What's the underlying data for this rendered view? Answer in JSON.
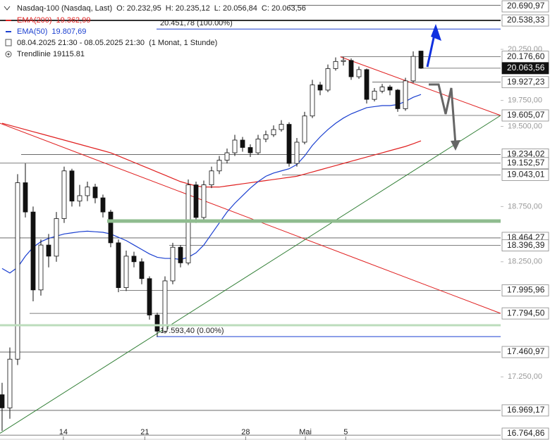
{
  "chart_data": {
    "type": "candlestick",
    "title": "Nasdaq-100 (Nasdaq, Last)",
    "ohlc_labels": [
      "O: 20.232,95",
      "H: 20.235,12",
      "L: 20.056,84",
      "C: 20.063,56"
    ],
    "period": "08.04.2025 21:30 - 08.05.2025 21:30",
    "interval": "(1 Monat, 1 Stunde)",
    "log_scale": true,
    "ylim": [
      16725,
      20745
    ],
    "xlim": [
      -0.27,
      64.27
    ],
    "yticks": [
      {
        "value": 20250,
        "label": "20.250,00"
      },
      {
        "value": 19750,
        "label": "19.750,00"
      },
      {
        "value": 19500,
        "label": "19.500,00"
      },
      {
        "value": 18750,
        "label": "18.750,00"
      },
      {
        "value": 18250,
        "label": "18.250,00"
      },
      {
        "value": 17250,
        "label": "17.250,00"
      }
    ],
    "xticks": [
      {
        "value": 7.9,
        "label": "14"
      },
      {
        "value": 18.4,
        "label": "21"
      },
      {
        "value": 31.4,
        "label": "28"
      },
      {
        "value": 39.1,
        "label": "Mai"
      },
      {
        "value": 44.3,
        "label": "5"
      }
    ],
    "candles": [
      [
        17100,
        17200,
        16800,
        16990
      ],
      [
        16990,
        17500,
        16900,
        17400
      ],
      [
        17400,
        19050,
        17350,
        18970
      ],
      [
        18970,
        19150,
        18650,
        18700
      ],
      [
        18700,
        18750,
        17900,
        18000
      ],
      [
        18000,
        18450,
        17950,
        18400
      ],
      [
        18400,
        18500,
        18200,
        18300
      ],
      [
        18300,
        18700,
        18250,
        18640
      ],
      [
        18640,
        19120,
        18600,
        19080
      ],
      [
        19080,
        19100,
        18750,
        18800
      ],
      [
        18800,
        18950,
        18750,
        18850
      ],
      [
        18850,
        18980,
        18800,
        18930
      ],
      [
        18930,
        18960,
        18780,
        18830
      ],
      [
        18830,
        18860,
        18650,
        18700
      ],
      [
        18700,
        18720,
        18380,
        18420
      ],
      [
        18420,
        18450,
        17980,
        18020
      ],
      [
        18020,
        18350,
        17990,
        18300
      ],
      [
        18300,
        18340,
        18200,
        18250
      ],
      [
        18250,
        18280,
        18050,
        18100
      ],
      [
        18100,
        18120,
        17740,
        17780
      ],
      [
        17780,
        17800,
        17593.4,
        17640
      ],
      [
        17640,
        18120,
        17620,
        18080
      ],
      [
        18080,
        18420,
        18050,
        18380
      ],
      [
        18380,
        18400,
        18200,
        18240
      ],
      [
        18240,
        19000,
        18220,
        18950
      ],
      [
        18950,
        18980,
        18600,
        18650
      ],
      [
        18650,
        18990,
        18620,
        18950
      ],
      [
        18950,
        19120,
        18920,
        19080
      ],
      [
        19080,
        19220,
        19050,
        19180
      ],
      [
        19180,
        19290,
        19150,
        19250
      ],
      [
        19250,
        19420,
        19220,
        19370
      ],
      [
        19370,
        19400,
        19260,
        19300
      ],
      [
        19300,
        19330,
        19210,
        19250
      ],
      [
        19250,
        19420,
        19230,
        19380
      ],
      [
        19380,
        19460,
        19350,
        19420
      ],
      [
        19420,
        19510,
        19400,
        19470
      ],
      [
        19470,
        19560,
        19450,
        19520
      ],
      [
        19520,
        19540,
        19120,
        19150
      ],
      [
        19150,
        19390,
        19120,
        19350
      ],
      [
        19350,
        19640,
        19330,
        19600
      ],
      [
        19600,
        19950,
        19580,
        19900
      ],
      [
        19900,
        19930,
        19800,
        19850
      ],
      [
        19850,
        20100,
        19830,
        20060
      ],
      [
        20060,
        20170,
        20040,
        20130
      ],
      [
        20130,
        20176.6,
        20090,
        20140
      ],
      [
        20140,
        20160,
        19950,
        19980
      ],
      [
        19980,
        20080,
        19960,
        20050
      ],
      [
        20050,
        20060,
        19720,
        19760
      ],
      [
        19760,
        19870,
        19740,
        19840
      ],
      [
        19840,
        19910,
        19820,
        19880
      ],
      [
        19880,
        19900,
        19800,
        19850
      ],
      [
        19850,
        19860,
        19640,
        19670
      ],
      [
        19670,
        19970,
        19650,
        19940
      ],
      [
        19940,
        20230,
        19920,
        20180
      ],
      [
        20232.95,
        20235.12,
        20056.84,
        20063.56
      ]
    ],
    "series": [
      {
        "name": "EMA(200)",
        "value_label": "19.362,99",
        "color": "#e02020",
        "values": [
          19530,
          19510,
          19490,
          19470,
          19450,
          19430,
          19410,
          19390,
          19370,
          19350,
          19330,
          19310,
          19290,
          19270,
          19250,
          19220,
          19190,
          19160,
          19130,
          19100,
          19070,
          19040,
          19010,
          18980,
          18960,
          18940,
          18930,
          18930,
          18930,
          18940,
          18950,
          18960,
          18970,
          18980,
          18990,
          19000,
          19010,
          19020,
          19030,
          19050,
          19070,
          19090,
          19110,
          19130,
          19150,
          19170,
          19190,
          19210,
          19230,
          19250,
          19270,
          19290,
          19310,
          19335,
          19362.99
        ]
      },
      {
        "name": "EMA(50)",
        "value_label": "19.807,69",
        "color": "#1a3fd0",
        "values": [
          18190,
          18150,
          18200,
          18300,
          18380,
          18430,
          18460,
          18480,
          18500,
          18510,
          18520,
          18525,
          18520,
          18515,
          18500,
          18470,
          18440,
          18400,
          18360,
          18320,
          18290,
          18280,
          18280,
          18270,
          18290,
          18330,
          18400,
          18500,
          18600,
          18700,
          18780,
          18850,
          18920,
          18980,
          19030,
          19060,
          19080,
          19100,
          19140,
          19220,
          19320,
          19400,
          19470,
          19530,
          19580,
          19620,
          19650,
          19680,
          19690,
          19700,
          19700,
          19710,
          19740,
          19780,
          19807.69
        ]
      }
    ],
    "trendline_label": "Trendlinie  19115.81",
    "trendlines": [
      {
        "color": "#e02020",
        "x": [
          -0.27,
          64.27
        ],
        "y": [
          19530,
          17794.5
        ]
      },
      {
        "color": "#e02020",
        "x": [
          43.6,
          64.27
        ],
        "y": [
          20176.6,
          19605.07
        ]
      },
      {
        "color": "#2e7d32",
        "x": [
          -0.27,
          64.27
        ],
        "y": [
          16780,
          19605.07
        ]
      }
    ],
    "fib_levels": [
      {
        "value": 20451.78,
        "label": "20.451,78 (100.00%)"
      },
      {
        "value": 17593.4,
        "label": "17.593,40 (0.00%)"
      }
    ],
    "levels": [
      {
        "value": 20690.97,
        "label": "20.690,97"
      },
      {
        "value": 20538.33,
        "label": "20.538,33"
      },
      {
        "value": 20176.6,
        "label": "20.176,60"
      },
      {
        "value": 20063.56,
        "label": "20.063,56"
      },
      {
        "value": 19927.23,
        "label": "19.927,23"
      },
      {
        "value": 19605.07,
        "label": "19.605,07"
      },
      {
        "value": 19234.02,
        "label": "19.234,02"
      },
      {
        "value": 19152.57,
        "label": "19.152,57"
      },
      {
        "value": 19043.01,
        "label": "19.043,01"
      },
      {
        "value": 18464.27,
        "label": "18.464,27"
      },
      {
        "value": 18396.39,
        "label": "18.396,39"
      },
      {
        "value": 17995.96,
        "label": "17.995,96"
      },
      {
        "value": 17794.5,
        "label": "17.794,50"
      },
      {
        "value": 17460.97,
        "label": "17.460,97"
      },
      {
        "value": 16969.17,
        "label": "16.969,17"
      },
      {
        "value": 16764.86,
        "label": "16.764,86"
      }
    ]
  }
}
